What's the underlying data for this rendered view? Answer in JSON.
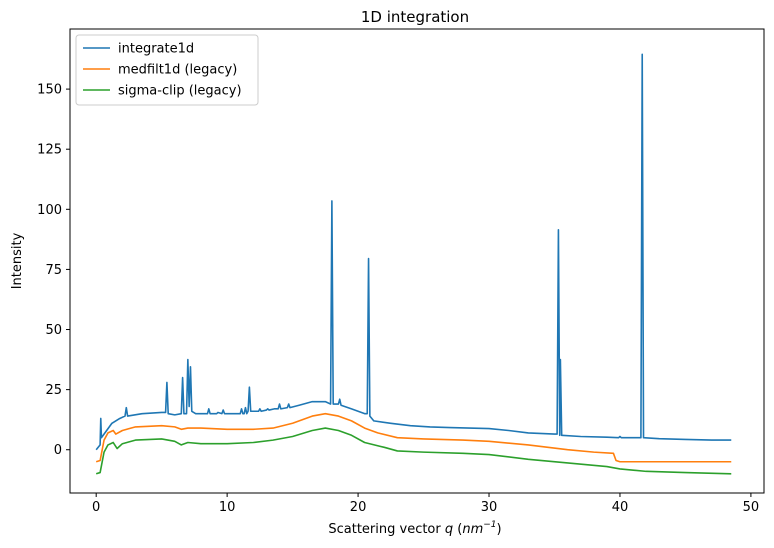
{
  "chart_data": {
    "type": "line",
    "title": "1D integration",
    "xlabel_prefix": "Scattering vector ",
    "xlabel_var": "q",
    "xlabel_unit_open": " (",
    "xlabel_unit_base": "nm",
    "xlabel_unit_exp": "−1",
    "xlabel_unit_close": ")",
    "ylabel": "Intensity",
    "xlim": [
      -2,
      51
    ],
    "ylim": [
      -18,
      175
    ],
    "xticks": [
      0,
      10,
      20,
      30,
      40,
      50
    ],
    "yticks": [
      0,
      25,
      50,
      75,
      100,
      125,
      150
    ],
    "grid": false,
    "legend_position": "top-left",
    "series": [
      {
        "name": "integrate1d",
        "color": "#1f77b4",
        "points": [
          [
            0,
            0
          ],
          [
            0.3,
            2
          ],
          [
            0.35,
            13
          ],
          [
            0.4,
            5
          ],
          [
            0.8,
            8
          ],
          [
            1.2,
            11
          ],
          [
            1.8,
            13
          ],
          [
            2.2,
            14
          ],
          [
            2.3,
            17.5
          ],
          [
            2.4,
            14
          ],
          [
            3.5,
            15
          ],
          [
            5.0,
            15.5
          ],
          [
            5.3,
            15.5
          ],
          [
            5.4,
            28
          ],
          [
            5.5,
            15
          ],
          [
            6.0,
            14.5
          ],
          [
            6.5,
            15
          ],
          [
            6.6,
            30
          ],
          [
            6.7,
            15
          ],
          [
            6.9,
            15
          ],
          [
            7.0,
            37.5
          ],
          [
            7.1,
            18
          ],
          [
            7.2,
            34.5
          ],
          [
            7.3,
            16
          ],
          [
            7.6,
            15
          ],
          [
            8.5,
            15
          ],
          [
            8.6,
            17
          ],
          [
            8.7,
            15
          ],
          [
            9.2,
            15
          ],
          [
            9.3,
            15.5
          ],
          [
            9.6,
            15
          ],
          [
            9.7,
            16.5
          ],
          [
            9.8,
            15
          ],
          [
            11.0,
            15
          ],
          [
            11.1,
            17
          ],
          [
            11.2,
            15
          ],
          [
            11.3,
            15
          ],
          [
            11.4,
            17.5
          ],
          [
            11.5,
            15
          ],
          [
            11.6,
            16
          ],
          [
            11.7,
            26
          ],
          [
            11.8,
            16
          ],
          [
            12.4,
            16
          ],
          [
            12.5,
            17
          ],
          [
            12.6,
            16
          ],
          [
            13.0,
            16.5
          ],
          [
            13.1,
            17
          ],
          [
            13.2,
            16.5
          ],
          [
            13.6,
            17
          ],
          [
            13.9,
            17
          ],
          [
            14.0,
            19
          ],
          [
            14.1,
            17
          ],
          [
            14.6,
            17.5
          ],
          [
            14.7,
            19
          ],
          [
            14.8,
            17.5
          ],
          [
            15.5,
            18.5
          ],
          [
            16.5,
            20
          ],
          [
            17.5,
            20
          ],
          [
            17.9,
            19
          ],
          [
            18.0,
            103.5
          ],
          [
            18.1,
            19
          ],
          [
            18.5,
            19
          ],
          [
            18.6,
            21
          ],
          [
            18.7,
            18.5
          ],
          [
            19.5,
            17
          ],
          [
            20.5,
            15
          ],
          [
            20.7,
            15
          ],
          [
            20.8,
            79.5
          ],
          [
            20.9,
            14
          ],
          [
            21.2,
            12
          ],
          [
            22.5,
            11
          ],
          [
            24.0,
            10
          ],
          [
            25.5,
            9.5
          ],
          [
            27.0,
            9.2
          ],
          [
            28.5,
            9.0
          ],
          [
            30.0,
            8.8
          ],
          [
            31.5,
            8
          ],
          [
            33.0,
            7
          ],
          [
            35.0,
            6.5
          ],
          [
            35.2,
            6.5
          ],
          [
            35.3,
            91.5
          ],
          [
            35.4,
            6
          ],
          [
            35.45,
            37.5
          ],
          [
            35.55,
            6
          ],
          [
            37.0,
            5.5
          ],
          [
            39.0,
            5.2
          ],
          [
            39.9,
            5
          ],
          [
            40.0,
            5.5
          ],
          [
            40.1,
            5
          ],
          [
            41.6,
            5
          ],
          [
            41.7,
            164.5
          ],
          [
            41.8,
            5
          ],
          [
            43.0,
            4.6
          ],
          [
            45.0,
            4.3
          ],
          [
            47.0,
            4.0
          ],
          [
            48.0,
            4.0
          ],
          [
            48.5,
            4.0
          ]
        ]
      },
      {
        "name": "medfilt1d (legacy)",
        "color": "#ff7f0e",
        "points": [
          [
            0,
            -5
          ],
          [
            0.3,
            -4.5
          ],
          [
            0.6,
            4
          ],
          [
            0.9,
            7
          ],
          [
            1.3,
            8
          ],
          [
            1.5,
            6.5
          ],
          [
            2.0,
            8
          ],
          [
            3.0,
            9.5
          ],
          [
            5.0,
            10
          ],
          [
            6.0,
            9.5
          ],
          [
            6.5,
            8.5
          ],
          [
            7.0,
            9
          ],
          [
            8.0,
            9
          ],
          [
            10.0,
            8.5
          ],
          [
            12.0,
            8.5
          ],
          [
            13.5,
            9
          ],
          [
            15.0,
            11
          ],
          [
            16.5,
            14
          ],
          [
            17.5,
            15
          ],
          [
            18.5,
            14
          ],
          [
            19.5,
            12
          ],
          [
            20.5,
            9
          ],
          [
            21.5,
            7
          ],
          [
            23.0,
            5
          ],
          [
            25.0,
            4.5
          ],
          [
            28.0,
            4
          ],
          [
            30.0,
            3.5
          ],
          [
            33.0,
            2
          ],
          [
            36.0,
            0
          ],
          [
            38.0,
            -1
          ],
          [
            39.5,
            -1.5
          ],
          [
            39.7,
            -4.5
          ],
          [
            40.0,
            -5
          ],
          [
            44.0,
            -5
          ],
          [
            48.5,
            -5
          ]
        ]
      },
      {
        "name": "sigma-clip (legacy)",
        "color": "#2ca02c",
        "points": [
          [
            0,
            -10
          ],
          [
            0.3,
            -9.5
          ],
          [
            0.6,
            -1
          ],
          [
            0.9,
            2
          ],
          [
            1.3,
            3
          ],
          [
            1.6,
            0.5
          ],
          [
            2.0,
            2.5
          ],
          [
            3.0,
            4
          ],
          [
            5.0,
            4.5
          ],
          [
            6.0,
            3.5
          ],
          [
            6.5,
            2
          ],
          [
            7.0,
            3
          ],
          [
            8.0,
            2.5
          ],
          [
            10.0,
            2.5
          ],
          [
            12.0,
            3
          ],
          [
            13.5,
            4
          ],
          [
            15.0,
            5.5
          ],
          [
            16.5,
            8
          ],
          [
            17.5,
            9
          ],
          [
            18.5,
            8
          ],
          [
            19.5,
            6
          ],
          [
            20.5,
            3
          ],
          [
            22.0,
            1
          ],
          [
            23.0,
            -0.5
          ],
          [
            25.0,
            -1
          ],
          [
            28.0,
            -1.5
          ],
          [
            30.0,
            -2
          ],
          [
            33.0,
            -4
          ],
          [
            36.0,
            -5.5
          ],
          [
            39.0,
            -7
          ],
          [
            40.0,
            -8
          ],
          [
            42.0,
            -9
          ],
          [
            45.0,
            -9.5
          ],
          [
            48.5,
            -10
          ]
        ]
      }
    ]
  }
}
